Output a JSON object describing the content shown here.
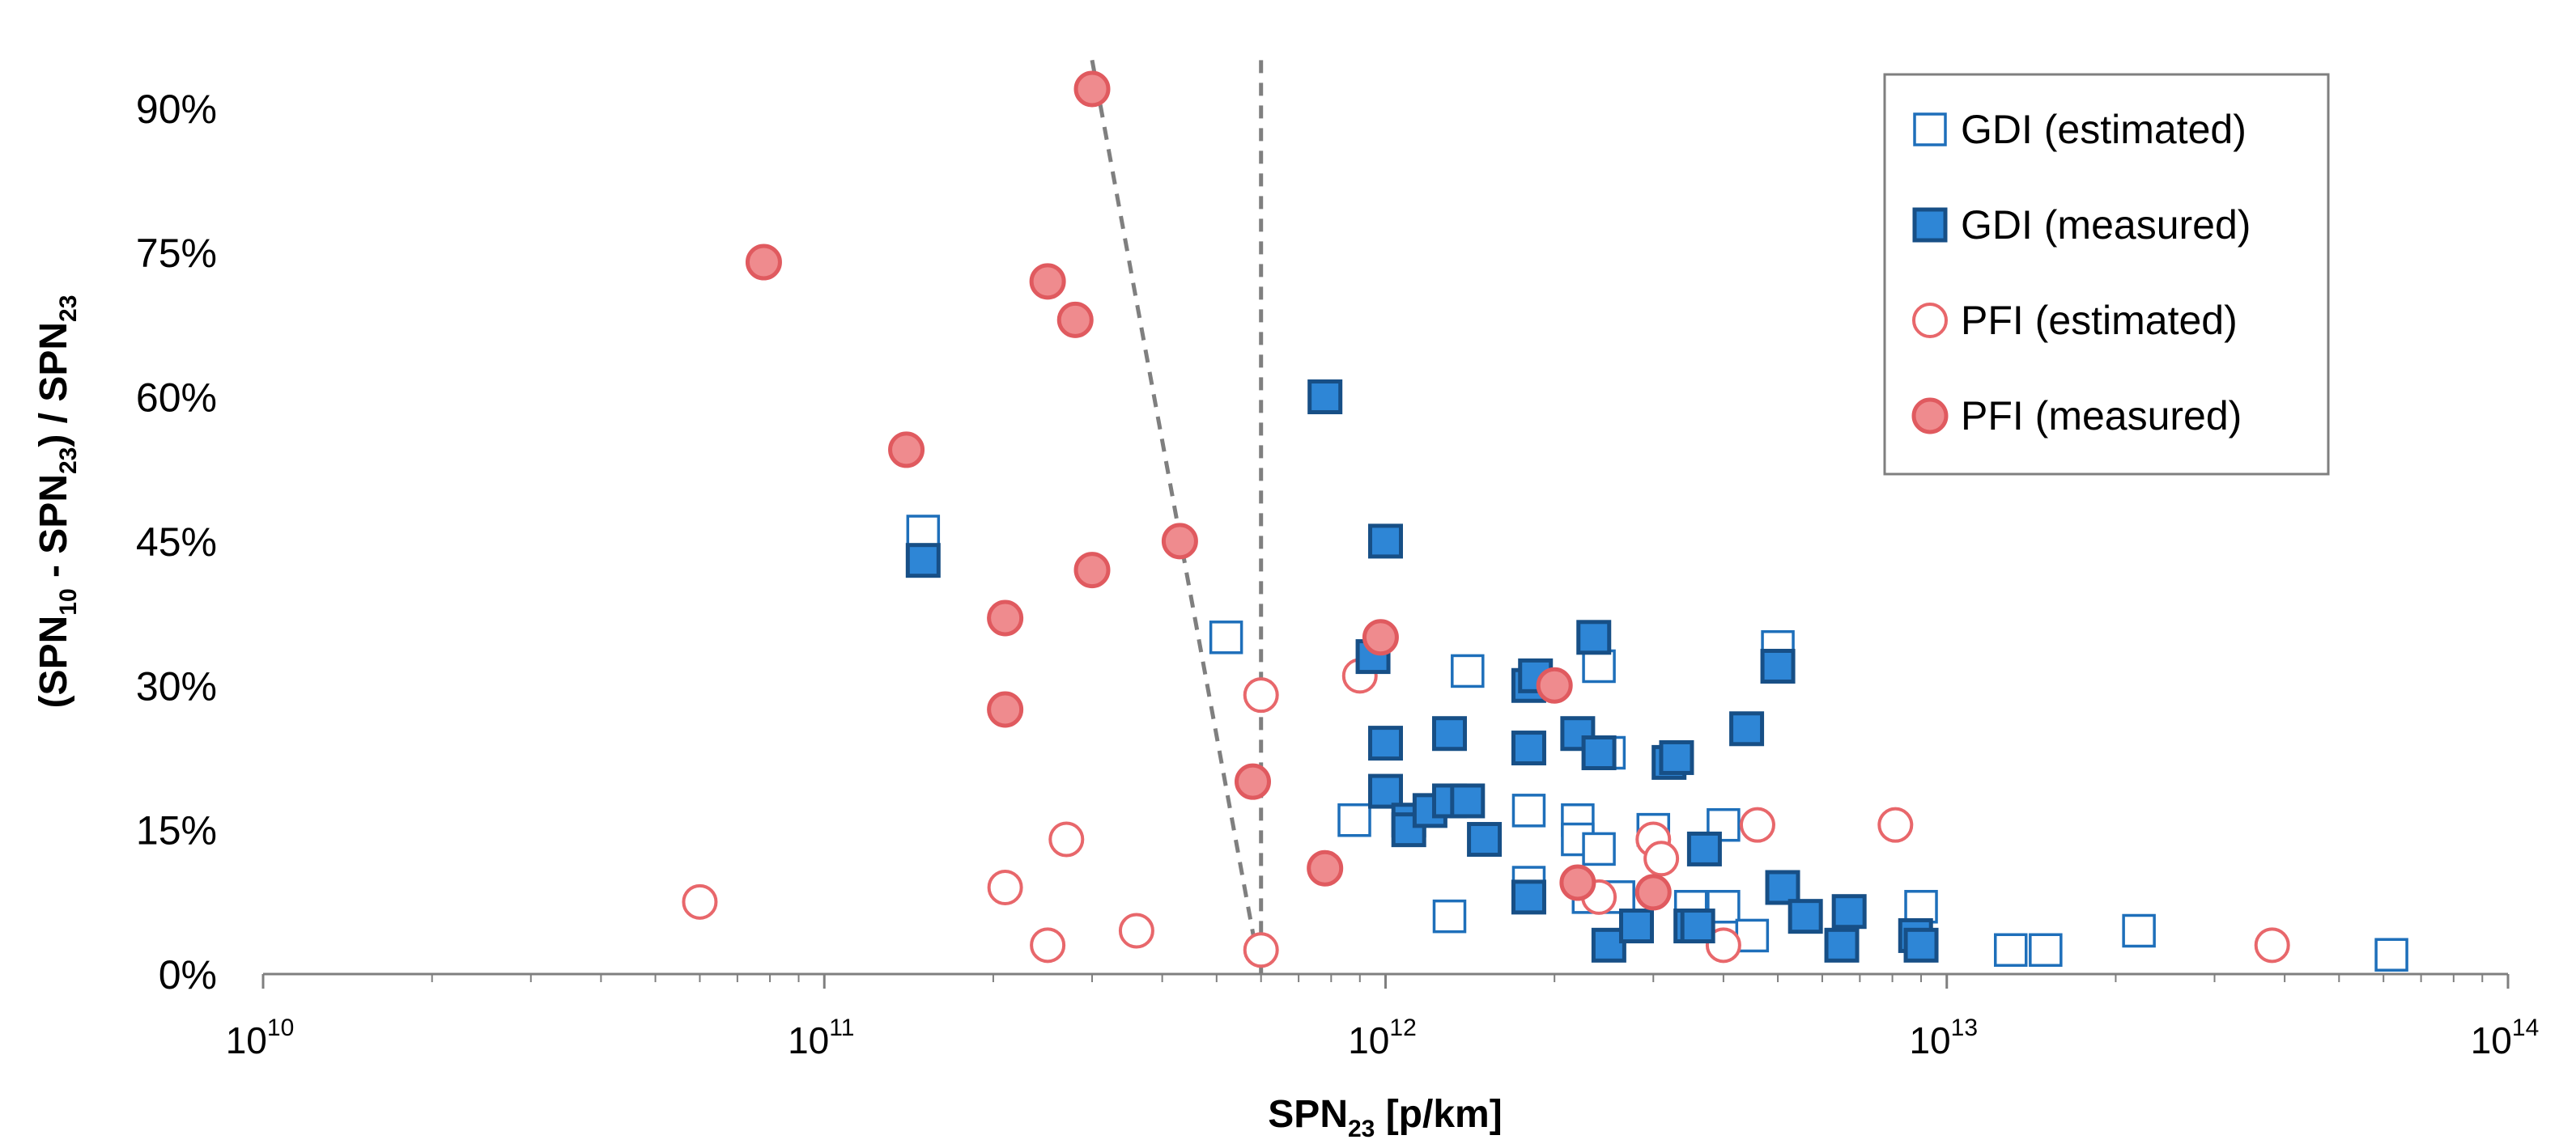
{
  "chart_data": {
    "type": "scatter",
    "xscale": "log",
    "xlim": [
      10000000000.0,
      100000000000000.0
    ],
    "ylim": [
      0,
      0.92
    ],
    "x_ticks": [
      {
        "base": "10",
        "exp": "10",
        "value": 10000000000.0
      },
      {
        "base": "10",
        "exp": "11",
        "value": 100000000000.0
      },
      {
        "base": "10",
        "exp": "12",
        "value": 1000000000000.0
      },
      {
        "base": "10",
        "exp": "13",
        "value": 10000000000000.0
      },
      {
        "base": "10",
        "exp": "14",
        "value": 100000000000000.0
      }
    ],
    "y_ticks": [
      {
        "label": "0%",
        "value": 0
      },
      {
        "label": "15%",
        "value": 0.15
      },
      {
        "label": "30%",
        "value": 0.3
      },
      {
        "label": "45%",
        "value": 0.45
      },
      {
        "label": "60%",
        "value": 0.6
      },
      {
        "label": "75%",
        "value": 0.75
      },
      {
        "label": "90%",
        "value": 0.9
      }
    ],
    "xlabel": {
      "pre": "SPN",
      "sub": "23",
      "post": " [p/km]"
    },
    "ylabel": {
      "p1": "(SPN",
      "s1": "10",
      "p2": " - SPN",
      "s2": "23",
      "p3": ") / SPN",
      "s3": "23"
    },
    "colors": {
      "gdi": "#1e6fba",
      "gdi_fill": "#2e86d6",
      "pfi": "#e8676b",
      "pfi_fill": "#ef8b8e",
      "guide": "#7f7f7f"
    },
    "legend_position": "top-right",
    "series": [
      {
        "name": "GDI (estimated)",
        "marker": "square-open",
        "points": [
          [
            150000000000.0,
            0.46
          ],
          [
            520000000000.0,
            0.35
          ],
          [
            880000000000.0,
            0.16
          ],
          [
            1300000000000.0,
            0.06
          ],
          [
            1400000000000.0,
            0.315
          ],
          [
            1800000000000.0,
            0.17
          ],
          [
            1800000000000.0,
            0.095
          ],
          [
            2200000000000.0,
            0.16
          ],
          [
            2200000000000.0,
            0.14
          ],
          [
            2300000000000.0,
            0.08
          ],
          [
            2400000000000.0,
            0.32
          ],
          [
            2400000000000.0,
            0.13
          ],
          [
            2500000000000.0,
            0.23
          ],
          [
            2600000000000.0,
            0.08
          ],
          [
            3000000000000.0,
            0.15
          ],
          [
            3500000000000.0,
            0.07
          ],
          [
            4000000000000.0,
            0.07
          ],
          [
            4000000000000.0,
            0.155
          ],
          [
            4500000000000.0,
            0.04
          ],
          [
            5000000000000.0,
            0.34
          ],
          [
            9000000000000.0,
            0.07
          ],
          [
            13000000000000.0,
            0.025
          ],
          [
            15000000000000.0,
            0.025
          ],
          [
            22000000000000.0,
            0.045
          ],
          [
            62000000000000.0,
            0.02
          ]
        ]
      },
      {
        "name": "GDI (measured)",
        "marker": "square-filled",
        "points": [
          [
            150000000000.0,
            0.43
          ],
          [
            780000000000.0,
            0.6
          ],
          [
            950000000000.0,
            0.33
          ],
          [
            1000000000000.0,
            0.45
          ],
          [
            1000000000000.0,
            0.24
          ],
          [
            1000000000000.0,
            0.19
          ],
          [
            1100000000000.0,
            0.16
          ],
          [
            1100000000000.0,
            0.15
          ],
          [
            1200000000000.0,
            0.17
          ],
          [
            1300000000000.0,
            0.25
          ],
          [
            1300000000000.0,
            0.18
          ],
          [
            1400000000000.0,
            0.18
          ],
          [
            1500000000000.0,
            0.14
          ],
          [
            1800000000000.0,
            0.3
          ],
          [
            1850000000000.0,
            0.31
          ],
          [
            1800000000000.0,
            0.235
          ],
          [
            1800000000000.0,
            0.08
          ],
          [
            2200000000000.0,
            0.25
          ],
          [
            2350000000000.0,
            0.35
          ],
          [
            2400000000000.0,
            0.23
          ],
          [
            2500000000000.0,
            0.03
          ],
          [
            2800000000000.0,
            0.05
          ],
          [
            3200000000000.0,
            0.22
          ],
          [
            3300000000000.0,
            0.225
          ],
          [
            3500000000000.0,
            0.05
          ],
          [
            3600000000000.0,
            0.05
          ],
          [
            3700000000000.0,
            0.13
          ],
          [
            4400000000000.0,
            0.255
          ],
          [
            5000000000000.0,
            0.32
          ],
          [
            5100000000000.0,
            0.09
          ],
          [
            5600000000000.0,
            0.06
          ],
          [
            6500000000000.0,
            0.03
          ],
          [
            6700000000000.0,
            0.065
          ],
          [
            8800000000000.0,
            0.04
          ],
          [
            9000000000000.0,
            0.03
          ]
        ]
      },
      {
        "name": "PFI (estimated)",
        "marker": "circle-open",
        "points": [
          [
            60000000000.0,
            0.075
          ],
          [
            210000000000.0,
            0.09
          ],
          [
            250000000000.0,
            0.03
          ],
          [
            270000000000.0,
            0.14
          ],
          [
            360000000000.0,
            0.045
          ],
          [
            600000000000.0,
            0.025
          ],
          [
            600000000000.0,
            0.29
          ],
          [
            900000000000.0,
            0.31
          ],
          [
            2400000000000.0,
            0.08
          ],
          [
            3000000000000.0,
            0.14
          ],
          [
            3100000000000.0,
            0.12
          ],
          [
            4000000000000.0,
            0.03
          ],
          [
            4600000000000.0,
            0.155
          ],
          [
            8100000000000.0,
            0.155
          ],
          [
            38000000000000.0,
            0.03
          ]
        ]
      },
      {
        "name": "PFI (measured)",
        "marker": "circle-filled",
        "points": [
          [
            78000000000.0,
            0.74
          ],
          [
            140000000000.0,
            0.545
          ],
          [
            210000000000.0,
            0.37
          ],
          [
            210000000000.0,
            0.275
          ],
          [
            250000000000.0,
            0.72
          ],
          [
            280000000000.0,
            0.68
          ],
          [
            300000000000.0,
            0.42
          ],
          [
            300000000000.0,
            0.92
          ],
          [
            430000000000.0,
            0.45
          ],
          [
            580000000000.0,
            0.2
          ],
          [
            780000000000.0,
            0.11
          ],
          [
            980000000000.0,
            0.35
          ],
          [
            2000000000000.0,
            0.3
          ],
          [
            2200000000000.0,
            0.095
          ],
          [
            3000000000000.0,
            0.085
          ]
        ]
      }
    ],
    "guide_lines": [
      {
        "name": "tilted",
        "points": [
          [
            300000000000.0,
            0.95
          ],
          [
            590000000000.0,
            0.02
          ]
        ]
      },
      {
        "name": "vertical",
        "points": [
          [
            600000000000.0,
            0.95
          ],
          [
            600000000000.0,
            0.0
          ]
        ]
      }
    ]
  }
}
